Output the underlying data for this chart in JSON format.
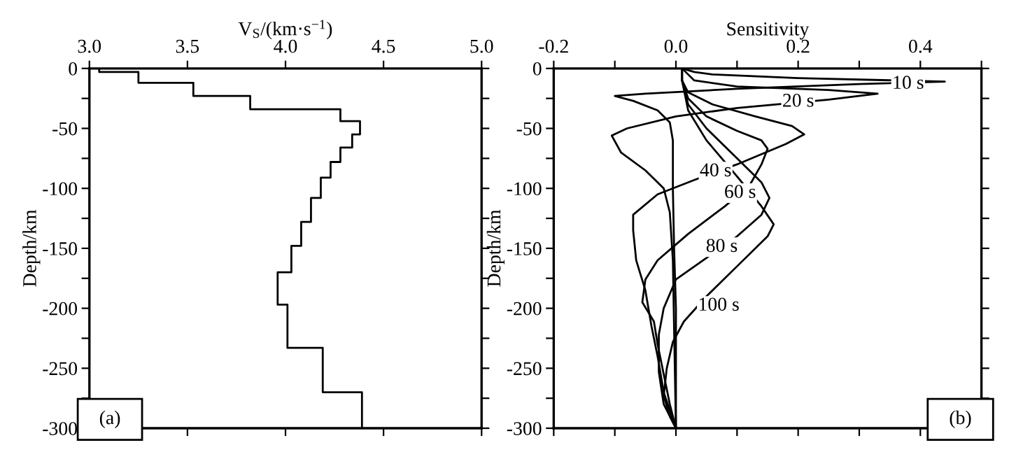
{
  "chart_data": [
    {
      "type": "line",
      "xlabel": "V$_{S}$/(km·s$^{−1}$)",
      "ylabel": "Depth/km",
      "xlim": [
        3.0,
        5.0
      ],
      "xticks": [
        {
          "value": 3.0,
          "label": "3.0"
        },
        {
          "value": 3.5,
          "label": "3.5"
        },
        {
          "value": 4.0,
          "label": "4.0"
        },
        {
          "value": 4.5,
          "label": "4.5"
        },
        {
          "value": 5.0,
          "label": "5.0"
        }
      ],
      "ylim": [
        -300,
        0
      ],
      "yticks": [
        0,
        {
          "value": -25,
          "label": null
        },
        -50,
        {
          "value": -75,
          "label": null
        },
        -100,
        {
          "value": -125,
          "label": null
        },
        -150,
        {
          "value": -175,
          "label": null
        },
        -200,
        {
          "value": -225,
          "label": null
        },
        -250,
        {
          "value": -275,
          "label": null
        },
        -300
      ],
      "grid": false,
      "marker": "none",
      "line_style": "solid",
      "annotations": [
        "(a)"
      ],
      "series": [
        {
          "color": "#000000",
          "x": [
            3.05,
            3.05,
            3.25,
            3.25,
            3.53,
            3.53,
            3.82,
            3.82,
            4.28,
            4.28,
            4.38,
            4.38,
            4.34,
            4.34,
            4.28,
            4.28,
            4.23,
            4.23,
            4.18,
            4.18,
            4.13,
            4.13,
            4.08,
            4.08,
            4.03,
            4.03,
            3.96,
            3.96,
            4.01,
            4.01,
            4.19,
            4.19,
            4.39,
            4.39
          ],
          "values": [
            0,
            -3,
            -3,
            -12,
            -12,
            -23,
            -23,
            -34,
            -34,
            -44,
            -44,
            -55,
            -55,
            -66,
            -66,
            -78,
            -78,
            -91,
            -91,
            -108,
            -108,
            -128,
            -128,
            -148,
            -148,
            -170,
            -170,
            -197,
            -197,
            -233,
            -233,
            -270,
            -270,
            -300
          ]
        }
      ]
    },
    {
      "type": "line",
      "xlabel": "Sensitivity",
      "ylabel": "Depth/km",
      "xlim": [
        -0.2,
        0.5
      ],
      "xticks": [
        {
          "value": -0.2,
          "label": "-0.2"
        },
        {
          "value": -0.1,
          "label": null
        },
        {
          "value": 0.0,
          "label": "0.0"
        },
        {
          "value": 0.1,
          "label": null
        },
        {
          "value": 0.2,
          "label": "0.2"
        },
        {
          "value": 0.3,
          "label": null
        },
        {
          "value": 0.4,
          "label": "0.4"
        },
        {
          "value": 0.5,
          "label": null
        }
      ],
      "ylim": [
        -300,
        0
      ],
      "yticks": [
        0,
        {
          "value": -25,
          "label": null
        },
        -50,
        {
          "value": -75,
          "label": null
        },
        -100,
        {
          "value": -125,
          "label": null
        },
        -150,
        {
          "value": -175,
          "label": null
        },
        -200,
        {
          "value": -225,
          "label": null
        },
        -250,
        {
          "value": -275,
          "label": null
        },
        -300
      ],
      "grid": false,
      "marker": "none",
      "line_style": "solid",
      "annotations": [
        "(b)",
        {
          "text": "10 s",
          "x": 0.38,
          "y": -13
        },
        {
          "text": "20 s",
          "x": 0.2,
          "y": -28
        },
        {
          "text": "40 s",
          "x": 0.065,
          "y": -86
        },
        {
          "text": "60 s",
          "x": 0.105,
          "y": -104
        },
        {
          "text": "80 s",
          "x": 0.075,
          "y": -149
        },
        {
          "text": "100 s",
          "x": 0.07,
          "y": -198
        }
      ],
      "series": [
        {
          "color": "#000000",
          "x": [
            0.01,
            0.03,
            0.06,
            0.2,
            0.44,
            0.3,
            0.1,
            -0.05,
            -0.1,
            -0.07,
            -0.03,
            -0.01,
            -0.005,
            -0.005,
            -0.003,
            0.0,
            0.0
          ],
          "values": [
            0,
            -3,
            -5,
            -8,
            -11,
            -13,
            -17,
            -21,
            -23,
            -27,
            -35,
            -45,
            -60,
            -100,
            -150,
            -200,
            -300
          ]
        },
        {
          "color": "#000000",
          "x": [
            0.01,
            0.02,
            0.03,
            0.1,
            0.25,
            0.33,
            0.25,
            0.1,
            0.0,
            -0.08,
            -0.105,
            -0.09,
            -0.05,
            -0.02,
            -0.01,
            -0.005,
            0.0
          ],
          "values": [
            0,
            -5,
            -10,
            -15,
            -18,
            -21,
            -26,
            -33,
            -40,
            -50,
            -56,
            -70,
            -85,
            -100,
            -120,
            -160,
            -300
          ]
        },
        {
          "color": "#000000",
          "x": [
            0.01,
            0.01,
            0.02,
            0.06,
            0.13,
            0.19,
            0.21,
            0.18,
            0.1,
            0.03,
            -0.03,
            -0.07,
            -0.07,
            -0.065,
            -0.05,
            -0.04,
            -0.03,
            -0.02,
            0.0
          ],
          "values": [
            0,
            -10,
            -20,
            -30,
            -40,
            -48,
            -55,
            -63,
            -80,
            -93,
            -105,
            -122,
            -135,
            -160,
            -185,
            -215,
            -240,
            -270,
            -300
          ]
        },
        {
          "color": "#000000",
          "x": [
            0.01,
            0.01,
            0.02,
            0.05,
            0.1,
            0.14,
            0.15,
            0.14,
            0.12,
            0.08,
            0.02,
            -0.03,
            -0.05,
            -0.055,
            -0.036,
            -0.03,
            -0.02,
            -0.01,
            0.0
          ],
          "values": [
            0,
            -10,
            -25,
            -40,
            -52,
            -60,
            -67,
            -80,
            -98,
            -115,
            -138,
            -160,
            -176,
            -195,
            -211,
            -230,
            -255,
            -280,
            -300
          ]
        },
        {
          "color": "#000000",
          "x": [
            0.01,
            0.01,
            0.02,
            0.05,
            0.1,
            0.14,
            0.153,
            0.14,
            0.1,
            0.05,
            0.0,
            -0.02,
            -0.028,
            -0.028,
            -0.02,
            0.0
          ],
          "values": [
            0,
            -10,
            -30,
            -50,
            -75,
            -95,
            -108,
            -122,
            -140,
            -158,
            -176,
            -200,
            -222,
            -253,
            -280,
            -300
          ]
        },
        {
          "color": "#000000",
          "x": [
            0.01,
            0.01,
            0.02,
            0.05,
            0.1,
            0.14,
            0.16,
            0.15,
            0.1,
            0.05,
            0.013,
            -0.005,
            -0.015,
            -0.02,
            -0.01,
            0.0
          ],
          "values": [
            0,
            -10,
            -35,
            -60,
            -90,
            -115,
            -130,
            -140,
            -165,
            -190,
            -211,
            -228,
            -250,
            -273,
            -290,
            -300
          ]
        }
      ]
    }
  ]
}
